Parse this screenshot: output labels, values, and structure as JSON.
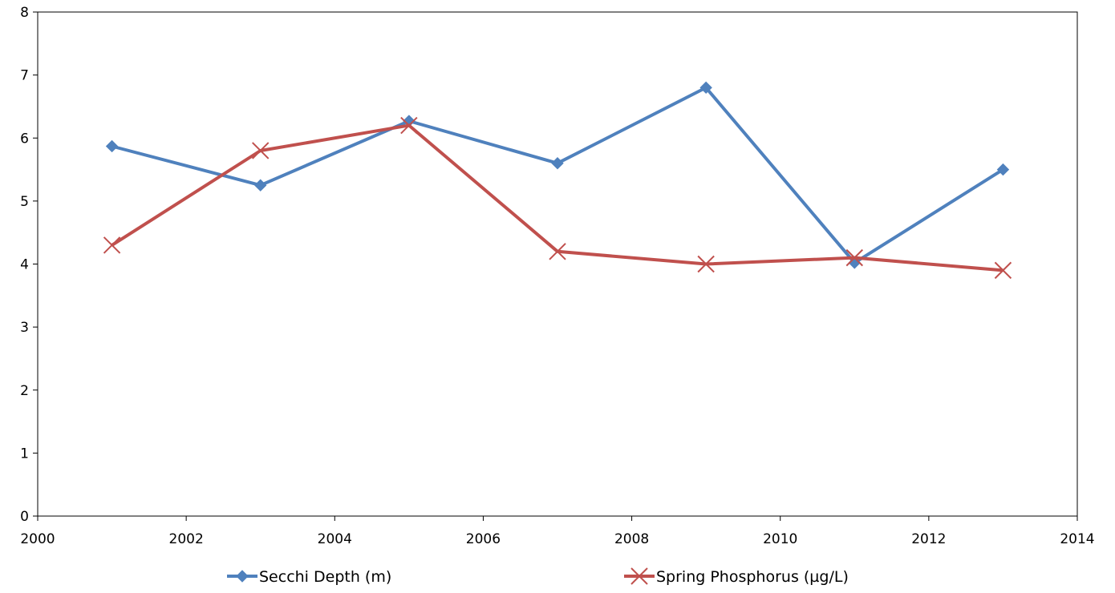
{
  "chart_data": {
    "type": "scatter",
    "title": "",
    "xlabel": "",
    "ylabel": "",
    "xlim": [
      2000,
      2014
    ],
    "ylim": [
      0,
      8
    ],
    "x_ticks": [
      "2000",
      "2002",
      "2004",
      "2006",
      "2008",
      "2010",
      "2012",
      "2014"
    ],
    "y_ticks": [
      "0",
      "1",
      "2",
      "3",
      "4",
      "5",
      "6",
      "7",
      "8"
    ],
    "grid": false,
    "legend_position": "bottom",
    "series": [
      {
        "name": "Secchi Depth  (m)",
        "color": "#4F81BD",
        "marker": "diamond",
        "x": [
          2001,
          2003,
          2005,
          2007,
          2009,
          2011,
          2013
        ],
        "values": [
          5.87,
          5.25,
          6.27,
          5.6,
          6.8,
          4.02,
          5.5
        ]
      },
      {
        "name": "Spring Phosphorus (µg/L)",
        "color": "#C0504D",
        "marker": "x",
        "x": [
          2001,
          2003,
          2005,
          2007,
          2009,
          2011,
          2013
        ],
        "values": [
          4.3,
          5.8,
          6.2,
          4.2,
          4.0,
          4.1,
          3.9
        ]
      }
    ]
  }
}
